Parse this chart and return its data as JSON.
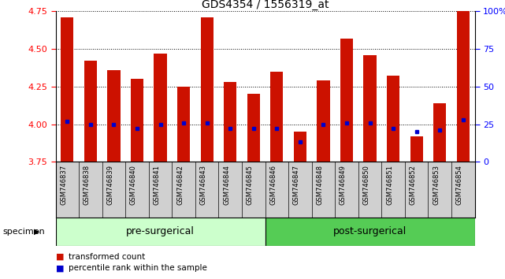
{
  "title": "GDS4354 / 1556319_at",
  "samples": [
    "GSM746837",
    "GSM746838",
    "GSM746839",
    "GSM746840",
    "GSM746841",
    "GSM746842",
    "GSM746843",
    "GSM746844",
    "GSM746845",
    "GSM746846",
    "GSM746847",
    "GSM746848",
    "GSM746849",
    "GSM746850",
    "GSM746851",
    "GSM746852",
    "GSM746853",
    "GSM746854"
  ],
  "transformed_count": [
    4.71,
    4.42,
    4.36,
    4.3,
    4.47,
    4.25,
    4.71,
    4.28,
    4.2,
    4.35,
    3.95,
    4.29,
    4.57,
    4.46,
    4.32,
    3.92,
    4.14,
    4.75
  ],
  "percentile_rank": [
    27,
    25,
    25,
    22,
    25,
    26,
    26,
    22,
    22,
    22,
    13,
    25,
    26,
    26,
    22,
    20,
    21,
    28
  ],
  "ymin": 3.75,
  "ymax": 4.75,
  "yticks": [
    3.75,
    4.0,
    4.25,
    4.5,
    4.75
  ],
  "y2ticks": [
    0,
    25,
    50,
    75,
    100
  ],
  "y2labels": [
    "0",
    "25",
    "50",
    "75",
    "100%"
  ],
  "bar_color": "#cc1100",
  "percentile_color": "#0000cc",
  "bar_width": 0.55,
  "pre_surgical_count": 9,
  "post_surgical_count": 9,
  "pre_label": "pre-surgerical",
  "post_label": "post-surgerical",
  "legend_labels": [
    "transformed count",
    "percentile rank within the sample"
  ],
  "specimen_label": "specimen",
  "pre_surgical_color": "#ccffcc",
  "post_surgical_color": "#55cc55",
  "xlabel_area_color": "#d0d0d0",
  "title_fontsize": 10,
  "tick_fontsize": 8,
  "label_fontsize": 8
}
